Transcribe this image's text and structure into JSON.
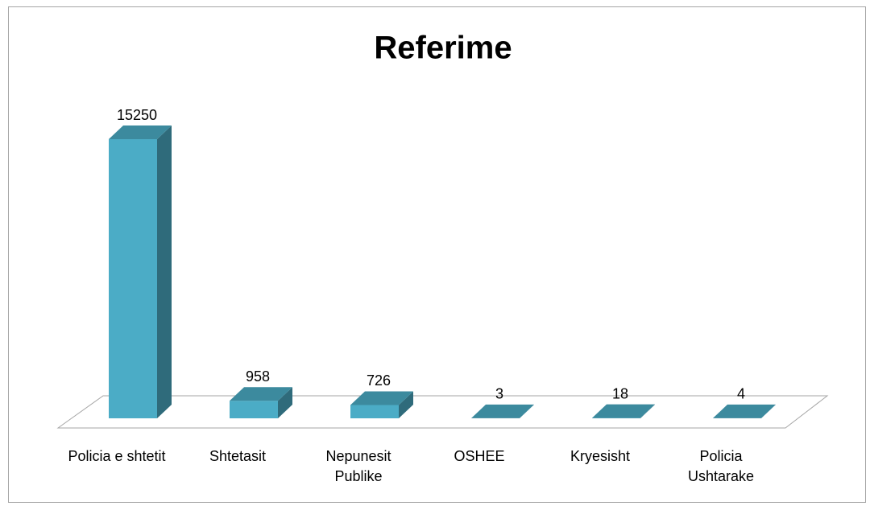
{
  "chart_data": {
    "type": "bar3d",
    "title": "Referime",
    "categories": [
      "Policia e shtetit",
      "Shtetasit",
      "Nepunesit Publike",
      "OSHEE",
      "Kryesisht",
      "Policia Ushtarake"
    ],
    "values": [
      15250,
      958,
      726,
      3,
      18,
      4
    ],
    "color": "#4bacc6"
  }
}
